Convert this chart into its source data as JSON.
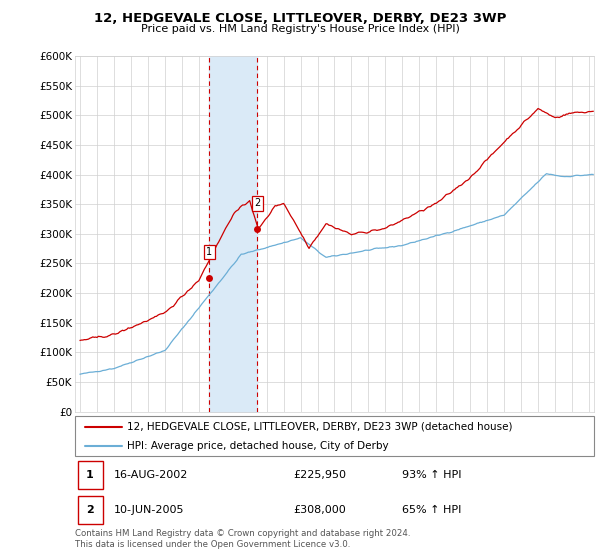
{
  "title1": "12, HEDGEVALE CLOSE, LITTLEOVER, DERBY, DE23 3WP",
  "title2": "Price paid vs. HM Land Registry's House Price Index (HPI)",
  "ylim": [
    0,
    600000
  ],
  "yticks": [
    0,
    50000,
    100000,
    150000,
    200000,
    250000,
    300000,
    350000,
    400000,
    450000,
    500000,
    550000,
    600000
  ],
  "ytick_labels": [
    "£0",
    "£50K",
    "£100K",
    "£150K",
    "£200K",
    "£250K",
    "£300K",
    "£350K",
    "£400K",
    "£450K",
    "£500K",
    "£550K",
    "£600K"
  ],
  "hpi_color": "#6baed6",
  "price_color": "#cc0000",
  "sale1_date": 2002.62,
  "sale1_price": 225950,
  "sale2_date": 2005.44,
  "sale2_price": 308000,
  "shade_color": "#daeaf7",
  "legend_label1": "12, HEDGEVALE CLOSE, LITTLEOVER, DERBY, DE23 3WP (detached house)",
  "legend_label2": "HPI: Average price, detached house, City of Derby",
  "footer": "Contains HM Land Registry data © Crown copyright and database right 2024.\nThis data is licensed under the Open Government Licence v3.0.",
  "table_row1": [
    "1",
    "16-AUG-2002",
    "£225,950",
    "93% ↑ HPI"
  ],
  "table_row2": [
    "2",
    "10-JUN-2005",
    "£308,000",
    "65% ↑ HPI"
  ],
  "xmin": 1995.0,
  "xmax": 2025.3
}
